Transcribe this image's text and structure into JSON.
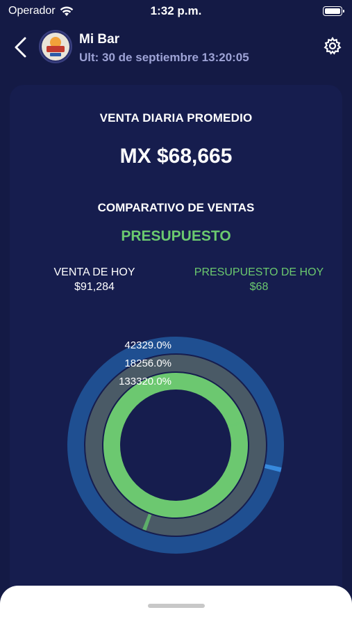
{
  "status": {
    "carrier": "Operador",
    "time": "1:32 p.m."
  },
  "header": {
    "title": "Mi Bar",
    "subtitle": "Ult: 30 de septiembre 13:20:05",
    "avatar_icon": "restaurant-logo-icon"
  },
  "summary": {
    "avg_label": "VENTA DIARIA PROMEDIO",
    "avg_value": "MX $68,665",
    "compare_label": "COMPARATIVO DE VENTAS",
    "mode_label": "PRESUPUESTO"
  },
  "kpis": {
    "today_label": "VENTA DE HOY",
    "today_value": "$91,284",
    "budget_label": "PRESUPUESTO DE HOY",
    "budget_value": "$68"
  },
  "chart_data": {
    "type": "radial_progress",
    "rings": [
      {
        "label": "42329.0%",
        "percent": 42329.0,
        "color": "#3a8fe6",
        "track": "#1f4f91"
      },
      {
        "label": "18256.0%",
        "percent": 18256.0,
        "color": "#5fb76a",
        "track": "#4a5a66"
      },
      {
        "label": "133320.0%",
        "percent": 133320.0,
        "color": "#6cc870",
        "track": "#6cc870"
      }
    ]
  },
  "colors": {
    "background": "#141a45",
    "card": "#161d4e",
    "accent_green": "#6bc96f"
  }
}
